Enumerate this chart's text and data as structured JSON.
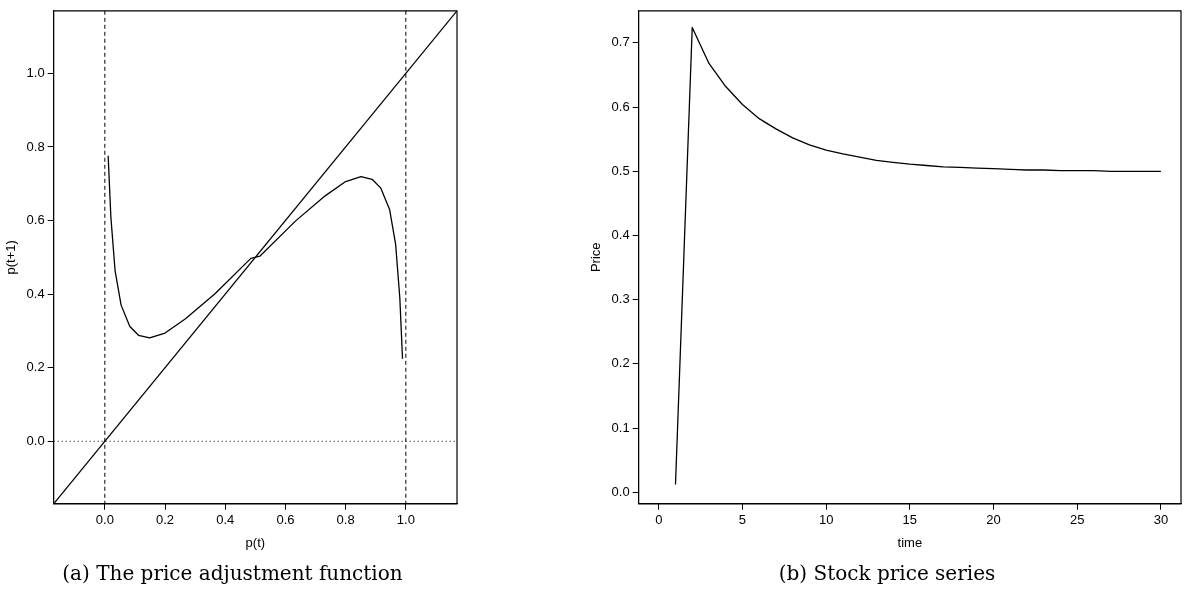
{
  "chart_data": [
    {
      "type": "line",
      "title": "(a) The price adjustment function",
      "xlabel": "p(t)",
      "ylabel": "p(t+1)",
      "xlim": [
        -0.17,
        1.17
      ],
      "ylim": [
        -0.17,
        1.17
      ],
      "xticks": [
        {
          "value": 0,
          "label": "0.0"
        },
        {
          "value": 0.2,
          "label": "0.2"
        },
        {
          "value": 0.4,
          "label": "0.4"
        },
        {
          "value": 0.6,
          "label": "0.6"
        },
        {
          "value": 0.8,
          "label": "0.8"
        },
        {
          "value": 1,
          "label": "1.0"
        }
      ],
      "yticks": [
        {
          "value": 0,
          "label": "0.0"
        },
        {
          "value": 0.2,
          "label": "0.2"
        },
        {
          "value": 0.4,
          "label": "0.4"
        },
        {
          "value": 0.6,
          "label": "0.6"
        },
        {
          "value": 0.8,
          "label": "0.8"
        },
        {
          "value": 1,
          "label": "1.0"
        }
      ],
      "series": [
        {
          "color": "#000000",
          "x": [
            0.011,
            0.02,
            0.034,
            0.054,
            0.083,
            0.112,
            0.149,
            0.2,
            0.268,
            0.366,
            0.485,
            0.515,
            0.634,
            0.732,
            0.8,
            0.851,
            0.888,
            0.917,
            0.946,
            0.966,
            0.98,
            0.989
          ],
          "values": [
            0.776,
            0.61,
            0.464,
            0.37,
            0.312,
            0.288,
            0.281,
            0.294,
            0.333,
            0.401,
            0.497,
            0.503,
            0.599,
            0.667,
            0.706,
            0.719,
            0.712,
            0.688,
            0.63,
            0.536,
            0.39,
            0.224
          ]
        },
        {
          "color": "#000000",
          "x": [
            -0.17,
            1.17
          ],
          "values": [
            -0.17,
            1.17
          ]
        }
      ],
      "ref_lines": [
        {
          "axis": "x",
          "value": 0,
          "line_style": "dashed"
        },
        {
          "axis": "x",
          "value": 1,
          "line_style": "dashed"
        },
        {
          "axis": "y",
          "value": 0,
          "line_style": "dotted"
        }
      ],
      "grid": false,
      "legend": false,
      "marker": "none",
      "line_style": "solid"
    },
    {
      "type": "line",
      "title": "(b) Stock price series",
      "xlabel": "time",
      "ylabel": "Price",
      "xlim": [
        -1.2,
        31.2
      ],
      "ylim": [
        -0.018,
        0.75
      ],
      "xticks": [
        0,
        5,
        10,
        15,
        20,
        25,
        30
      ],
      "yticks": [
        {
          "value": 0,
          "label": "0.0"
        },
        {
          "value": 0.1,
          "label": "0.1"
        },
        {
          "value": 0.2,
          "label": "0.2"
        },
        {
          "value": 0.3,
          "label": "0.3"
        },
        {
          "value": 0.4,
          "label": "0.4"
        },
        {
          "value": 0.5,
          "label": "0.5"
        },
        {
          "value": 0.6,
          "label": "0.6"
        },
        {
          "value": 0.7,
          "label": "0.7"
        }
      ],
      "series": [
        {
          "color": "#000000",
          "x": [
            1,
            2,
            3,
            4,
            5,
            6,
            7,
            8,
            9,
            10,
            11,
            12,
            13,
            14,
            15,
            16,
            17,
            18,
            19,
            20,
            21,
            22,
            23,
            24,
            25,
            26,
            27,
            28,
            29,
            30
          ],
          "values": [
            0.012,
            0.724,
            0.668,
            0.632,
            0.604,
            0.582,
            0.566,
            0.552,
            0.541,
            0.533,
            0.527,
            0.522,
            0.517,
            0.514,
            0.511,
            0.509,
            0.507,
            0.506,
            0.505,
            0.504,
            0.503,
            0.502,
            0.502,
            0.501,
            0.501,
            0.501,
            0.5,
            0.5,
            0.5,
            0.5
          ]
        }
      ],
      "grid": false,
      "legend": false,
      "marker": "none",
      "line_style": "solid"
    }
  ]
}
